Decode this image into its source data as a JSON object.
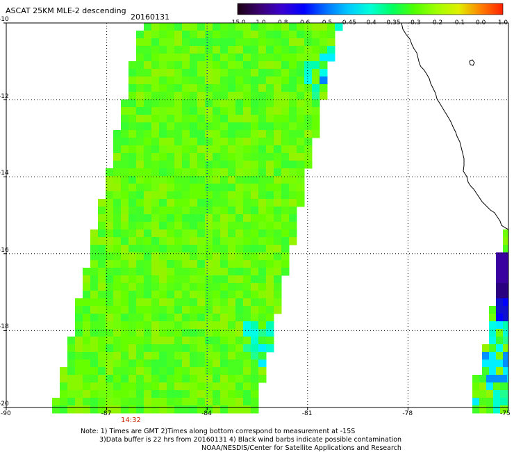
{
  "header": {
    "title": "ASCAT 25KM MLE-2 descending",
    "date": "20160131"
  },
  "colorbar": {
    "labels": [
      "-15.0",
      "-1.0",
      "-0.8",
      "-0.6",
      "-0.5",
      "-0.45",
      "-0.4",
      "-0.35",
      "-0.3",
      "-0.2",
      "-0.1",
      "0.0",
      "1.0"
    ],
    "stops": [
      "#1a0010",
      "#3a0070",
      "#3a00d0",
      "#0000ff",
      "#0070ff",
      "#00c8ff",
      "#00ffd8",
      "#00ff60",
      "#50ff00",
      "#a0ff00",
      "#e0f000",
      "#ff8000",
      "#ff2000"
    ]
  },
  "map": {
    "lat_range": [
      -20,
      -10
    ],
    "lon_range": [
      -90,
      -75
    ],
    "lat_ticks": [
      "-10",
      "-12",
      "-14",
      "-16",
      "-18",
      "-20"
    ],
    "lon_ticks": [
      "-90",
      "-87",
      "-84",
      "-81",
      "-78",
      "-75"
    ],
    "overpass_time": "14:32"
  },
  "notes": {
    "line1": "Note: 1) Times are GMT 2)Times along bottom correspond to measurement at -15S",
    "line2": "3)Data buffer is 22 hrs from 20160131 4) Black wind barbs indicate possible contamination",
    "line3": "NOAA/NESDIS/Center for Satellite Applications and Research"
  }
}
